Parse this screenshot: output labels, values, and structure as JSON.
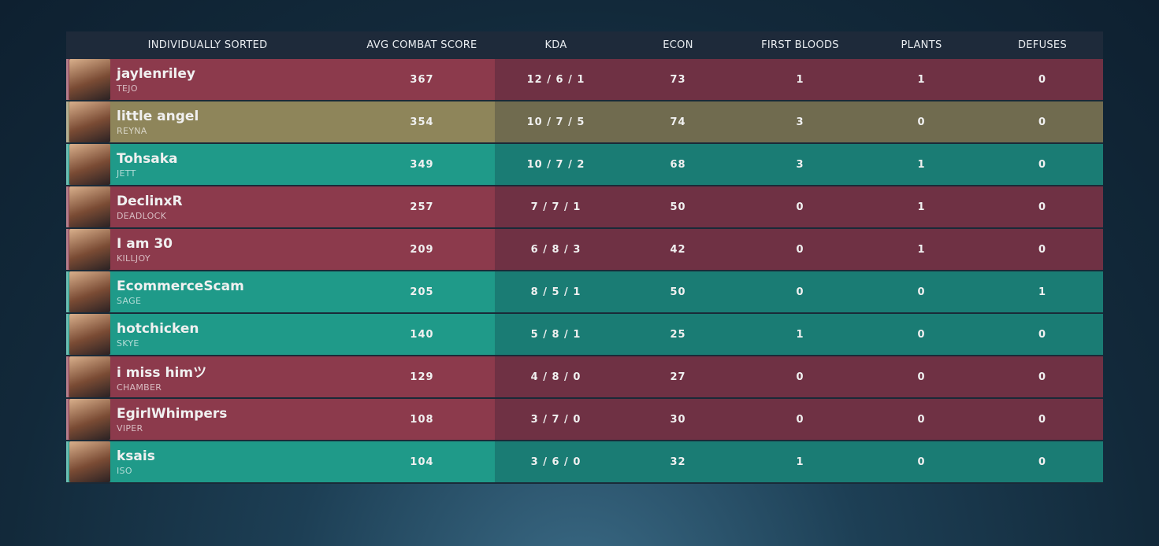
{
  "scoreboard": {
    "columns": [
      "INDIVIDUALLY SORTED",
      "AVG COMBAT SCORE",
      "KDA",
      "ECON",
      "FIRST BLOODS",
      "PLANTS",
      "DEFUSES"
    ],
    "rows": [
      {
        "player": "jaylenriley",
        "agent": "TEJO",
        "color": "#8c3a4c",
        "stats": [
          367,
          "12 / 6 / 1",
          73,
          1,
          1,
          0
        ]
      },
      {
        "player": "little angel",
        "agent": "REYNA",
        "color": "#8e855a",
        "stats": [
          354,
          "10 / 7 / 5",
          74,
          3,
          0,
          0
        ]
      },
      {
        "player": "Tohsaka",
        "agent": "JETT",
        "color": "#1f9a89",
        "stats": [
          349,
          "10 / 7 / 2",
          68,
          3,
          1,
          0
        ]
      },
      {
        "player": "DeclinxR",
        "agent": "DEADLOCK",
        "color": "#8c3a4c",
        "stats": [
          257,
          "7 / 7 / 1",
          50,
          0,
          1,
          0
        ]
      },
      {
        "player": "I am 30",
        "agent": "KILLJOY",
        "color": "#8c3a4c",
        "stats": [
          209,
          "6 / 8 / 3",
          42,
          0,
          1,
          0
        ]
      },
      {
        "player": "EcommerceScam",
        "agent": "SAGE",
        "color": "#1f9a89",
        "stats": [
          205,
          "8 / 5 / 1",
          50,
          0,
          0,
          1
        ]
      },
      {
        "player": "hotchicken",
        "agent": "SKYE",
        "color": "#1f9a89",
        "stats": [
          140,
          "5 / 8 / 1",
          25,
          1,
          0,
          0
        ]
      },
      {
        "player": "i miss himツ",
        "agent": "CHAMBER",
        "color": "#8c3a4c",
        "stats": [
          129,
          "4 / 8 / 0",
          27,
          0,
          0,
          0
        ]
      },
      {
        "player": "EgirlWhimpers",
        "agent": "VIPER",
        "color": "#8c3a4c",
        "stats": [
          108,
          "3 / 7 / 0",
          30,
          0,
          0,
          0
        ]
      },
      {
        "player": "ksais",
        "agent": "ISO",
        "color": "#1f9a89",
        "stats": [
          104,
          "3 / 6 / 0",
          32,
          1,
          0,
          0
        ]
      }
    ]
  }
}
